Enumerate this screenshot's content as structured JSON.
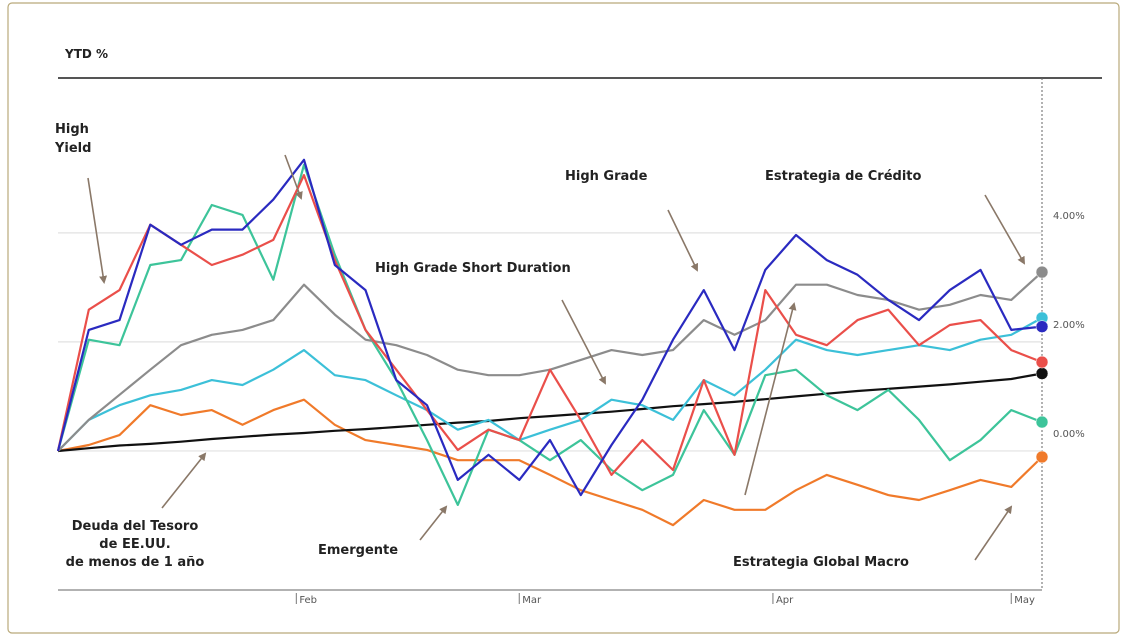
{
  "chart_data": {
    "type": "line",
    "title": "YTD %",
    "xlim": [
      0,
      128
    ],
    "xticks": [
      {
        "value": 31,
        "label": "Feb"
      },
      {
        "value": 60,
        "label": "Mar"
      },
      {
        "value": 93,
        "label": "Apr"
      },
      {
        "value": 124,
        "label": "May"
      }
    ],
    "ylim": [
      -2.55,
      6.84
    ],
    "yticks": [
      {
        "value": 0,
        "label": "0.00%"
      },
      {
        "value": 2,
        "label": "2.00%"
      },
      {
        "value": 4,
        "label": "4.00%"
      }
    ],
    "grid": true,
    "x": [
      0,
      4,
      8,
      12,
      16,
      20,
      24,
      28,
      32,
      36,
      40,
      44,
      48,
      52,
      56,
      60,
      64,
      68,
      72,
      76,
      80,
      84,
      88,
      92,
      96,
      100,
      104,
      108,
      112,
      116,
      120,
      124,
      128
    ],
    "series": [
      {
        "color": "#f07a2a",
        "values": [
          0,
          0.11,
          0.29,
          0.84,
          0.66,
          0.75,
          0.48,
          0.75,
          0.94,
          0.48,
          0.2,
          0.11,
          0.02,
          -0.17,
          -0.17,
          -0.17,
          -0.44,
          -0.72,
          -0.9,
          -1.08,
          -1.36,
          -0.9,
          -1.08,
          -1.08,
          -0.72,
          -0.44,
          -0.62,
          -0.81,
          -0.9,
          -0.72,
          -0.53,
          -0.66,
          -0.11
        ]
      },
      {
        "color": "#111111",
        "values": [
          0,
          0.05,
          0.1,
          0.13,
          0.17,
          0.22,
          0.26,
          0.3,
          0.33,
          0.37,
          0.4,
          0.44,
          0.48,
          0.52,
          0.55,
          0.6,
          0.64,
          0.68,
          0.72,
          0.77,
          0.82,
          0.86,
          0.9,
          0.95,
          1.0,
          1.05,
          1.1,
          1.14,
          1.18,
          1.22,
          1.27,
          1.32,
          1.42
        ]
      },
      {
        "color": "#3cc0d8",
        "values": [
          0,
          0.57,
          0.84,
          1.02,
          1.12,
          1.3,
          1.21,
          1.49,
          1.85,
          1.39,
          1.3,
          1.02,
          0.75,
          0.39,
          0.57,
          0.2,
          0.39,
          0.57,
          0.94,
          0.84,
          0.57,
          1.3,
          1.02,
          1.49,
          2.04,
          1.85,
          1.76,
          1.85,
          1.94,
          1.85,
          2.04,
          2.13,
          2.44
        ]
      },
      {
        "color": "#3dc49a",
        "values": [
          0,
          2.04,
          1.94,
          3.41,
          3.5,
          4.51,
          4.33,
          3.14,
          5.25,
          3.6,
          2.22,
          1.3,
          0.2,
          -0.99,
          0.39,
          0.2,
          -0.17,
          0.2,
          -0.35,
          -0.72,
          -0.44,
          0.75,
          -0.07,
          1.39,
          1.49,
          1.02,
          0.75,
          1.12,
          0.57,
          -0.17,
          0.2,
          0.75,
          0.53
        ]
      },
      {
        "color": "#8c8c8c",
        "values": [
          0,
          0.57,
          1.03,
          1.49,
          1.94,
          2.13,
          2.22,
          2.4,
          3.05,
          2.5,
          2.04,
          1.94,
          1.76,
          1.49,
          1.39,
          1.39,
          1.49,
          1.67,
          1.85,
          1.76,
          1.85,
          2.4,
          2.13,
          2.4,
          3.05,
          3.05,
          2.86,
          2.77,
          2.59,
          2.68,
          2.86,
          2.77,
          3.28
        ]
      },
      {
        "color": "#ea4f4a",
        "values": [
          0,
          2.59,
          2.95,
          4.15,
          3.78,
          3.41,
          3.6,
          3.87,
          5.06,
          3.5,
          2.22,
          1.49,
          0.75,
          0.02,
          0.39,
          0.2,
          1.49,
          0.57,
          -0.44,
          0.2,
          -0.35,
          1.3,
          -0.07,
          2.95,
          2.13,
          1.94,
          2.4,
          2.59,
          1.94,
          2.31,
          2.4,
          1.85,
          1.63
        ]
      },
      {
        "color": "#2a2ac0",
        "values": [
          0,
          2.22,
          2.4,
          4.15,
          3.78,
          4.06,
          4.06,
          4.61,
          5.34,
          3.41,
          2.95,
          1.3,
          0.84,
          -0.53,
          -0.07,
          -0.53,
          0.2,
          -0.81,
          0.11,
          0.94,
          2.04,
          2.95,
          1.85,
          3.32,
          3.96,
          3.5,
          3.23,
          2.77,
          2.4,
          2.95,
          3.32,
          2.22,
          2.28
        ]
      }
    ],
    "annotations": [
      [
        "High",
        "Yield"
      ],
      [
        "High Grade"
      ],
      [
        "Estrategia de Crédito"
      ],
      [
        "High Grade Short Duration"
      ],
      [
        "Deuda del Tesoro",
        "de EE.UU.",
        "de menos de 1 año"
      ],
      [
        "Emergente"
      ],
      [
        "Estrategia Global Macro"
      ]
    ]
  }
}
